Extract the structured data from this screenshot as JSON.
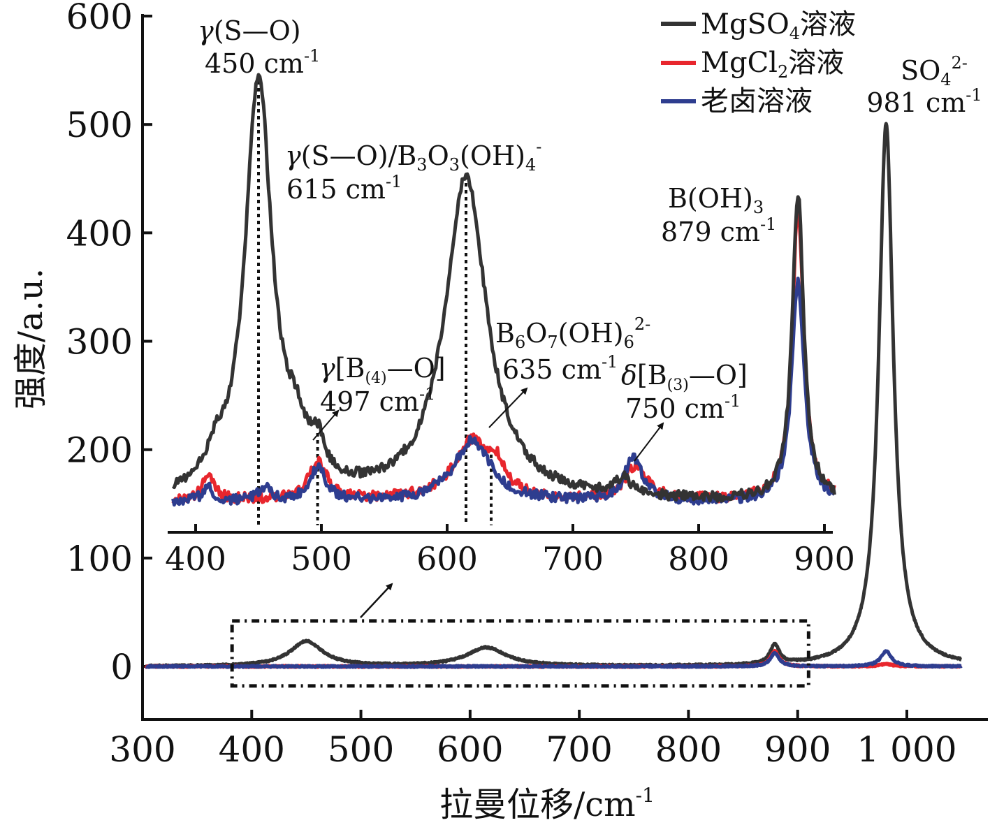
{
  "chart_data": [
    {
      "type": "line",
      "role": "main",
      "title": "",
      "xlabel": "拉曼位移/cm",
      "xlabel_sup": "-1",
      "ylabel": "强度/a.u.",
      "xlim": [
        300,
        1050
      ],
      "ylim": [
        -50,
        600
      ],
      "xticks": [
        300,
        400,
        500,
        600,
        700,
        800,
        900,
        1000
      ],
      "xtick_labels": [
        "300",
        "400",
        "500",
        "600",
        "700",
        "800",
        "900",
        "1 000"
      ],
      "yticks": [
        0,
        100,
        200,
        300,
        400,
        500,
        600
      ],
      "ytick_labels": [
        "0",
        "100",
        "200",
        "300",
        "400",
        "500",
        "600"
      ],
      "zoom_box_x": [
        382,
        910
      ],
      "zoom_box_y": [
        -18,
        42
      ],
      "series": [
        {
          "name": "MgSO4溶液",
          "color": "#333333",
          "baseline": 0,
          "peaks": [
            [
              450,
              23,
              18
            ],
            [
              615,
              17,
              22
            ],
            [
              879,
              18,
              5
            ],
            [
              981,
              500,
              8
            ]
          ]
        },
        {
          "name": "MgCl2溶液",
          "color": "#e8262d",
          "baseline": 0,
          "peaks": [
            [
              879,
              14,
              5
            ],
            [
              981,
              2,
              8
            ]
          ]
        },
        {
          "name": "老卤溶液",
          "color": "#2e3d8f",
          "baseline": 0,
          "peaks": [
            [
              879,
              12,
              5
            ],
            [
              981,
              14,
              6
            ]
          ]
        }
      ],
      "annotations": [
        {
          "label": "SO",
          "sub": "4",
          "sup": "2-"
        },
        {
          "label": "981 cm",
          "sup": "-1"
        }
      ]
    },
    {
      "type": "line",
      "role": "inset",
      "xlim": [
        380,
        910
      ],
      "ylim": [
        150,
        560
      ],
      "xticks": [
        400,
        500,
        600,
        700,
        800,
        900
      ],
      "xtick_labels": [
        "400",
        "500",
        "600",
        "700",
        "800",
        "900"
      ],
      "series": [
        {
          "name": "MgSO4溶液",
          "color": "#333333",
          "baseline": 163,
          "peaks": [
            [
              450,
              375,
              13
            ],
            [
              415,
              20,
              8
            ],
            [
              480,
              35,
              10
            ],
            [
              497,
              28,
              6
            ],
            [
              615,
              290,
              20
            ],
            [
              740,
              15,
              8
            ],
            [
              879,
              275,
              5.5
            ]
          ]
        },
        {
          "name": "MgCl2溶液",
          "color": "#e8262d",
          "baseline": 165,
          "peaks": [
            [
              410,
              20,
              6
            ],
            [
              497,
              33,
              9
            ],
            [
              620,
              52,
              18
            ],
            [
              640,
              20,
              7
            ],
            [
              750,
              30,
              10
            ],
            [
              879,
              262,
              5.5
            ]
          ]
        },
        {
          "name": "老卤溶液",
          "color": "#2e3d8f",
          "baseline": 163,
          "peaks": [
            [
              410,
              12,
              6
            ],
            [
              455,
              12,
              6
            ],
            [
              497,
              30,
              8
            ],
            [
              620,
              55,
              18
            ],
            [
              748,
              38,
              9
            ],
            [
              879,
              198,
              6
            ]
          ]
        }
      ],
      "annotations": [
        {
          "prefix": "γ",
          "label": "(S—O)"
        },
        {
          "label": "450 cm",
          "sup": "-1"
        },
        {
          "prefix": "γ",
          "label": "(S—O)/B",
          "sub1": "3",
          "mid": "O",
          "sub2": "3",
          "tail": "(OH)",
          "sub3": "4",
          "sup": "-"
        },
        {
          "label": "615 cm",
          "sup": "-1"
        },
        {
          "prefix": "γ",
          "label": "[B",
          "sub": "(4)",
          "tail": "—O]"
        },
        {
          "label": "497 cm",
          "sup": "-1"
        },
        {
          "label": "B",
          "sub1": "6",
          "mid": "O",
          "sub2": "7",
          "tail": "(OH)",
          "sub3": "6",
          "sup": "2-"
        },
        {
          "label": "635 cm",
          "sup": "-1"
        },
        {
          "prefix": "δ",
          "label": "[B",
          "sub": "(3)",
          "tail": "—O]"
        },
        {
          "label": "750 cm",
          "sup": "-1"
        },
        {
          "label": "B(OH)",
          "sub": "3"
        },
        {
          "label": "879 cm",
          "sup": "-1"
        }
      ]
    }
  ],
  "legend": {
    "position": "top-right",
    "items": [
      {
        "name": "MgSO",
        "sub": "4",
        "suffix": "溶液",
        "color": "#333333"
      },
      {
        "name": "MgCl",
        "sub": "2",
        "suffix": "溶液",
        "color": "#e8262d"
      },
      {
        "name": "老卤溶液",
        "sub": "",
        "suffix": "",
        "color": "#2e3d8f"
      }
    ]
  }
}
